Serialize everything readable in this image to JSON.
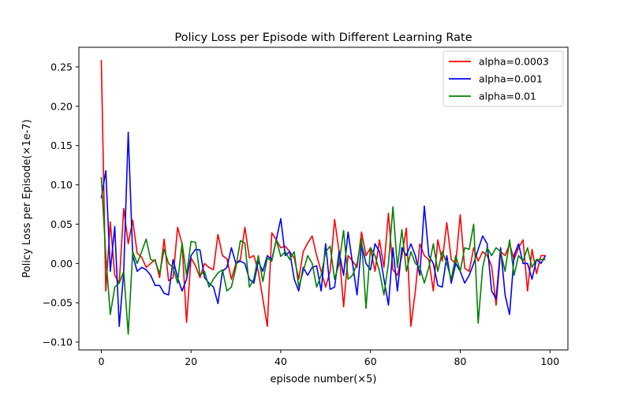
{
  "chart_data": {
    "type": "line",
    "title": "Policy Loss per Episode with Different Learning Rate",
    "xlabel": "episode number(×5)",
    "ylabel": "Policy Loss per Episode(×1e-7)",
    "xlim": [
      -5,
      104
    ],
    "ylim": [
      -0.11,
      0.275
    ],
    "xticks": [
      0,
      20,
      40,
      60,
      80,
      100
    ],
    "yticks": [
      -0.1,
      -0.05,
      0.0,
      0.05,
      0.1,
      0.15,
      0.2,
      0.25
    ],
    "xtick_labels": [
      "0",
      "20",
      "40",
      "60",
      "80",
      "100"
    ],
    "ytick_labels": [
      "−0.10",
      "−0.05",
      "0.00",
      "0.05",
      "0.10",
      "0.15",
      "0.20",
      "0.25"
    ],
    "grid": false,
    "legend_position": "top-right",
    "x": [
      0,
      1,
      2,
      3,
      4,
      5,
      6,
      7,
      8,
      9,
      10,
      11,
      12,
      13,
      14,
      15,
      16,
      17,
      18,
      19,
      20,
      21,
      22,
      23,
      24,
      25,
      26,
      27,
      28,
      29,
      30,
      31,
      32,
      33,
      34,
      35,
      36,
      37,
      38,
      39,
      40,
      41,
      42,
      43,
      44,
      45,
      46,
      47,
      48,
      49,
      50,
      51,
      52,
      53,
      54,
      55,
      56,
      57,
      58,
      59,
      60,
      61,
      62,
      63,
      64,
      65,
      66,
      67,
      68,
      69,
      70,
      71,
      72,
      73,
      74,
      75,
      76,
      77,
      78,
      79,
      80,
      81,
      82,
      83,
      84,
      85,
      86,
      87,
      88,
      89,
      90,
      91,
      92,
      93,
      94,
      95,
      96,
      97,
      98,
      99
    ],
    "series": [
      {
        "name": "alpha=0.0003",
        "color": "#ff0000",
        "values": [
          0.259,
          -0.035,
          0.053,
          -0.015,
          -0.025,
          0.07,
          0.025,
          0.055,
          0.013,
          0.008,
          -0.005,
          0.0,
          0.005,
          -0.018,
          0.031,
          -0.022,
          -0.018,
          0.046,
          0.025,
          -0.075,
          0.007,
          -0.003,
          -0.018,
          0.0,
          -0.005,
          -0.008,
          0.037,
          0.01,
          0.006,
          -0.02,
          0.0,
          0.005,
          0.046,
          0.007,
          0.01,
          -0.01,
          -0.045,
          -0.08,
          0.039,
          0.03,
          0.02,
          0.022,
          0.015,
          0.007,
          -0.02,
          0.015,
          0.026,
          0.035,
          0.01,
          -0.01,
          -0.03,
          -0.01,
          0.056,
          0.015,
          -0.055,
          0.01,
          0.003,
          -0.005,
          0.04,
          0.01,
          0.02,
          -0.01,
          0.03,
          -0.005,
          0.064,
          -0.008,
          -0.015,
          0.01,
          0.045,
          -0.08,
          -0.035,
          0.025,
          0.01,
          0.005,
          -0.035,
          0.03,
          0.003,
          0.052,
          0.005,
          0.0,
          0.062,
          -0.006,
          -0.01,
          0.02,
          0.003,
          0.015,
          0.01,
          -0.003,
          -0.053,
          0.015,
          0.01,
          0.025,
          0.005,
          0.02,
          0.03,
          -0.035,
          0.018,
          -0.013,
          0.01,
          0.01
        ]
      },
      {
        "name": "alpha=0.001",
        "color": "#0000ff",
        "values": [
          0.083,
          0.118,
          -0.01,
          0.047,
          -0.08,
          -0.01,
          0.167,
          0.01,
          -0.01,
          -0.005,
          -0.008,
          -0.015,
          -0.028,
          -0.028,
          -0.038,
          -0.04,
          0.005,
          -0.018,
          -0.035,
          -0.02,
          0.01,
          0.018,
          0.017,
          -0.018,
          -0.025,
          -0.03,
          -0.051,
          -0.01,
          -0.005,
          0.02,
          0.0,
          0.003,
          0.0,
          -0.02,
          -0.025,
          0.003,
          -0.01,
          0.01,
          0.005,
          0.03,
          0.057,
          0.01,
          0.015,
          -0.02,
          -0.035,
          -0.005,
          -0.015,
          -0.005,
          -0.003,
          -0.035,
          0.025,
          -0.033,
          -0.03,
          0.015,
          -0.015,
          0.04,
          0.0,
          -0.04,
          0.025,
          0.0,
          -0.008,
          0.025,
          0.015,
          -0.02,
          -0.053,
          0.02,
          -0.035,
          0.02,
          0.01,
          0.025,
          0.01,
          -0.015,
          0.073,
          0.01,
          0.0,
          -0.028,
          -0.03,
          0.01,
          -0.025,
          0.0,
          -0.01,
          -0.025,
          -0.015,
          0.0,
          0.018,
          0.035,
          0.025,
          -0.035,
          -0.045,
          0.02,
          -0.04,
          -0.065,
          0.01,
          0.025,
          0.0,
          0.0,
          -0.02,
          0.005,
          0.0,
          0.01
        ]
      },
      {
        "name": "alpha=0.01",
        "color": "#008000",
        "values": [
          0.11,
          0.01,
          -0.065,
          -0.03,
          -0.025,
          -0.01,
          -0.09,
          0.015,
          0.0,
          0.015,
          0.031,
          0.005,
          0.003,
          -0.013,
          0.018,
          0.0,
          -0.005,
          -0.025,
          0.026,
          -0.015,
          0.028,
          0.027,
          -0.015,
          -0.01,
          -0.03,
          -0.02,
          -0.012,
          -0.008,
          -0.035,
          -0.03,
          -0.005,
          0.029,
          0.026,
          -0.03,
          -0.02,
          0.01,
          -0.023,
          0.007,
          0.003,
          0.03,
          0.009,
          0.015,
          0.005,
          0.015,
          -0.03,
          -0.01,
          0.01,
          0.0,
          -0.03,
          -0.015,
          0.015,
          0.022,
          -0.02,
          0.0,
          0.042,
          -0.02,
          -0.015,
          0.0,
          0.032,
          -0.057,
          0.02,
          0.01,
          -0.01,
          -0.04,
          0.0,
          0.072,
          -0.005,
          0.043,
          -0.01,
          0.015,
          0.0,
          -0.005,
          -0.025,
          -0.005,
          0.025,
          -0.01,
          0.015,
          0.0,
          -0.02,
          0.01,
          -0.01,
          0.02,
          0.018,
          0.05,
          -0.076,
          -0.005,
          0.02,
          0.01,
          0.02,
          0.015,
          -0.01,
          0.03,
          -0.015,
          0.01,
          0.003,
          0.02,
          -0.005,
          0.005,
          0.005,
          0.005
        ]
      }
    ]
  }
}
